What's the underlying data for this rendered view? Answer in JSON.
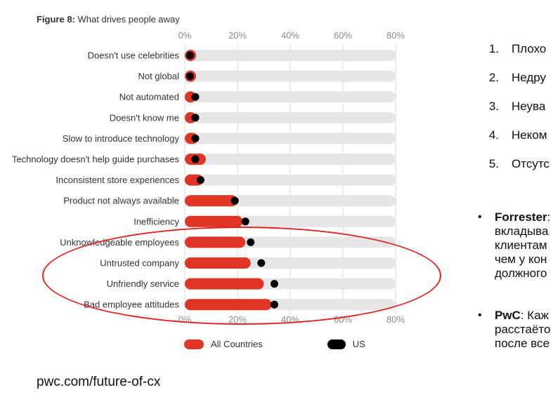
{
  "figure": {
    "label": "Figure 8:",
    "title": "What drives people away"
  },
  "chart_data": {
    "type": "bar",
    "title": "What drives people away",
    "categories": [
      "Doesn't use celebrities",
      "Not global",
      "Not automated",
      "Doesn't know me",
      "Slow to introduce technology",
      "Technology doesn't help guide purchases",
      "Inconsistent store experiences",
      "Product not always available",
      "Inefficiency",
      "Unknowledgeable employees",
      "Untrusted company",
      "Unfriendly service",
      "Bad employee attitudes"
    ],
    "series": [
      {
        "name": "All Countries",
        "values": [
          2,
          3,
          4,
          4,
          5,
          8,
          7,
          20,
          22,
          23,
          25,
          30,
          33
        ]
      },
      {
        "name": "US",
        "values": [
          2,
          2,
          4,
          4,
          4,
          4,
          6,
          19,
          23,
          25,
          29,
          34,
          34
        ]
      }
    ],
    "xlim": [
      0,
      80
    ],
    "x_ticks": [
      "0%",
      "20%",
      "40%",
      "60%",
      "80%"
    ],
    "grid": true,
    "legend_position": "bottom",
    "colors": {
      "all_countries": "#e03426",
      "us": "#000000",
      "track": "#e6e6e6"
    }
  },
  "legend": {
    "all": "All Countries",
    "us": "US"
  },
  "source": "pwc.com/future-of-cx",
  "right_list": [
    {
      "n": "1.",
      "text": "Плохо"
    },
    {
      "n": "2.",
      "text": "Недру"
    },
    {
      "n": "3.",
      "text": "Неува"
    },
    {
      "n": "4.",
      "text": "Неком"
    },
    {
      "n": "5.",
      "text": "Отсутс"
    }
  ],
  "bullets": [
    {
      "bold": "Forrester",
      "lines": [
        ":",
        "вкладыва",
        "клиентам",
        "чем у кон",
        "должного"
      ]
    },
    {
      "bold": "PwC",
      "lines": [
        ": Каж",
        "расстаёто",
        "после все"
      ]
    }
  ]
}
